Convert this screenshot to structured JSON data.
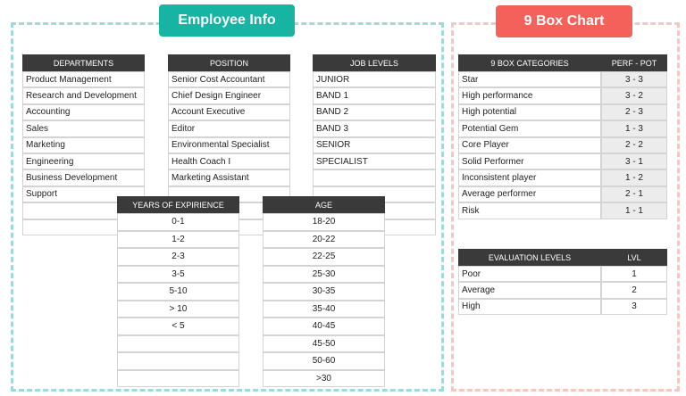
{
  "badges": {
    "employee_info": "Employee Info",
    "nine_box": "9 Box Chart"
  },
  "departments": {
    "header": "DEPARTMENTS",
    "rows": [
      "Product Management",
      "Research and Development",
      "Accounting",
      "Sales",
      "Marketing",
      "Engineering",
      "Business Development",
      "Support"
    ]
  },
  "position": {
    "header": "POSITION",
    "rows": [
      "Senior Cost Accountant",
      "Chief Design Engineer",
      "Account Executive",
      "Editor",
      "Environmental Specialist",
      "Health Coach I",
      "Marketing Assistant"
    ]
  },
  "job_levels": {
    "header": "JOB LEVELS",
    "rows": [
      "JUNIOR",
      "BAND 1",
      "BAND 2",
      "BAND 3",
      "SENIOR",
      "SPECIALIST"
    ]
  },
  "experience": {
    "header": "YEARS OF EXPIRIENCE",
    "rows": [
      "0-1",
      "1-2",
      "2-3",
      "3-5",
      "5-10",
      "> 10",
      "< 5"
    ]
  },
  "age": {
    "header": "AGE",
    "rows": [
      "18-20",
      "20-22",
      "22-25",
      "25-30",
      "30-35",
      "35-40",
      "40-45",
      "45-50",
      "50-60",
      ">30"
    ]
  },
  "categories": {
    "headers": [
      "9 BOX CATEGORIES",
      "PERF - POT"
    ],
    "rows": [
      [
        "Star",
        "3 - 3"
      ],
      [
        "High performance",
        "3 - 2"
      ],
      [
        "High potential",
        "2 - 3"
      ],
      [
        "Potential Gem",
        "1 - 3"
      ],
      [
        "Core Player",
        "2 - 2"
      ],
      [
        "Solid Performer",
        "3 - 1"
      ],
      [
        "Inconsistent player",
        "1 - 2"
      ],
      [
        "Average performer",
        "2 - 1"
      ],
      [
        "Risk",
        "1 - 1"
      ]
    ]
  },
  "evaluation": {
    "headers": [
      "EVALUATION LEVELS",
      "LVL"
    ],
    "rows": [
      [
        "Poor",
        "1"
      ],
      [
        "Average",
        "2"
      ],
      [
        "High",
        "3"
      ]
    ]
  }
}
